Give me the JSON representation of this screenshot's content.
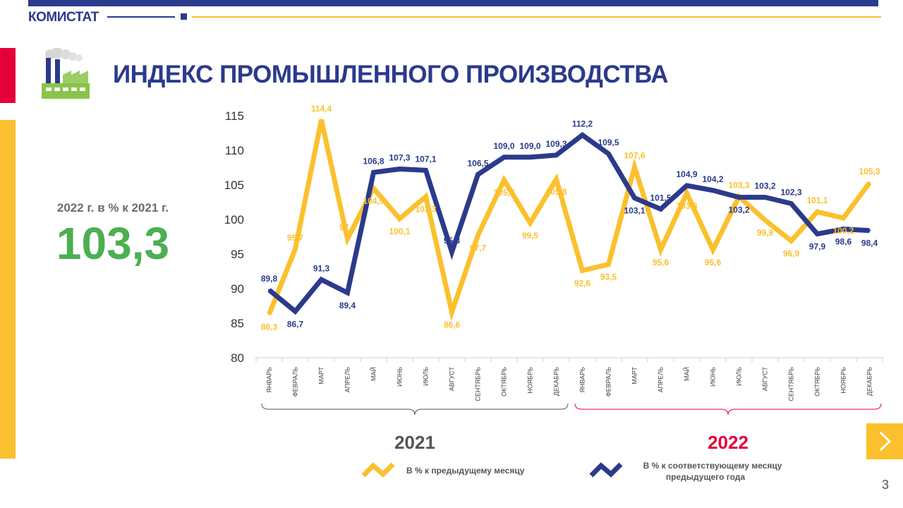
{
  "header": {
    "brand": "КОМИСТАТ"
  },
  "title": "ИНДЕКС ПРОМЫШЛЕННОГО ПРОИЗВОДСТВА",
  "summary": {
    "label": "2022 г. в % к 2021 г.",
    "value": "103,3"
  },
  "page_number": "3",
  "icons": {
    "factory": "factory-icon",
    "next": "chevron-right-icon"
  },
  "colors": {
    "navy": "#2b3a8c",
    "yellow": "#fbc02d",
    "red": "#e4003a",
    "green": "#4caf50"
  },
  "chart_data": {
    "type": "line",
    "categories": [
      "ЯНВАРЬ",
      "ФЕВРАЛЬ",
      "МАРТ",
      "АПРЕЛЬ",
      "МАЙ",
      "ИЮНЬ",
      "ИЮЛЬ",
      "АВГУСТ",
      "СЕНТЯБРЬ",
      "ОКТЯБРЬ",
      "НОЯБРЬ",
      "ДЕКАБРЬ",
      "ЯНВАРЬ",
      "ФЕВРАЛЬ",
      "МАРТ",
      "АПРЕЛЬ",
      "МАЙ",
      "ИЮНЬ",
      "ИЮЛЬ",
      "АВГУСТ",
      "СЕНТЯБРЬ",
      "ОКТЯБРЬ",
      "НОЯБРЬ",
      "ДЕКАБРЬ"
    ],
    "groups": [
      {
        "label": "2021",
        "from": 0,
        "to": 11,
        "color": "#555555"
      },
      {
        "label": "2022",
        "from": 12,
        "to": 23,
        "color": "#e4003a"
      }
    ],
    "ylim": [
      80,
      115
    ],
    "yticks": [
      80,
      85,
      90,
      95,
      100,
      105,
      110,
      115
    ],
    "series": [
      {
        "name": "В %  к предыдущему  месяцу",
        "color": "#fbc02d",
        "values": [
          86.3,
          95.7,
          114.4,
          97.2,
          104.5,
          100.1,
          103.3,
          86.6,
          97.7,
          105.7,
          99.5,
          105.8,
          92.6,
          93.5,
          107.6,
          95.6,
          103.8,
          95.6,
          103.3,
          99.9,
          96.9,
          101.1,
          100.2,
          105.3
        ],
        "labels": [
          "86,3",
          "95,7",
          "114,4",
          "97,2",
          "104,5",
          "100,1",
          "103,3",
          "86,6",
          "97,7",
          "105,7",
          "99,5",
          "105,8",
          "92,6",
          "93,5",
          "107,6",
          "95,6",
          "103,8",
          "95,6",
          "103,3",
          "99,9",
          "96,9",
          "101,1",
          "100,2",
          "105,3"
        ]
      },
      {
        "name": "В %  к соответствующему  месяцу предыдущего года",
        "legend_lines": [
          "В %  к соответствующему  месяцу",
          "предыдущего года"
        ],
        "color": "#2b3a8c",
        "values": [
          89.8,
          86.7,
          91.3,
          89.4,
          106.8,
          107.3,
          107.1,
          95.3,
          106.5,
          109.0,
          109.0,
          109.3,
          112.2,
          109.5,
          103.1,
          101.5,
          104.9,
          104.2,
          103.2,
          103.2,
          102.3,
          97.9,
          98.6,
          98.4
        ],
        "labels": [
          "89,8",
          "86,7",
          "91,3",
          "89,4",
          "106,8",
          "107,3",
          "107,1",
          "95,3",
          "106,5",
          "109,0",
          "109,0",
          "109,3",
          "112,2",
          "109,5",
          "103,1",
          "101,5",
          "104,9",
          "104,2",
          "103,2",
          "103,2",
          "102,3",
          "97,9",
          "98,6",
          "98,4"
        ]
      }
    ]
  }
}
